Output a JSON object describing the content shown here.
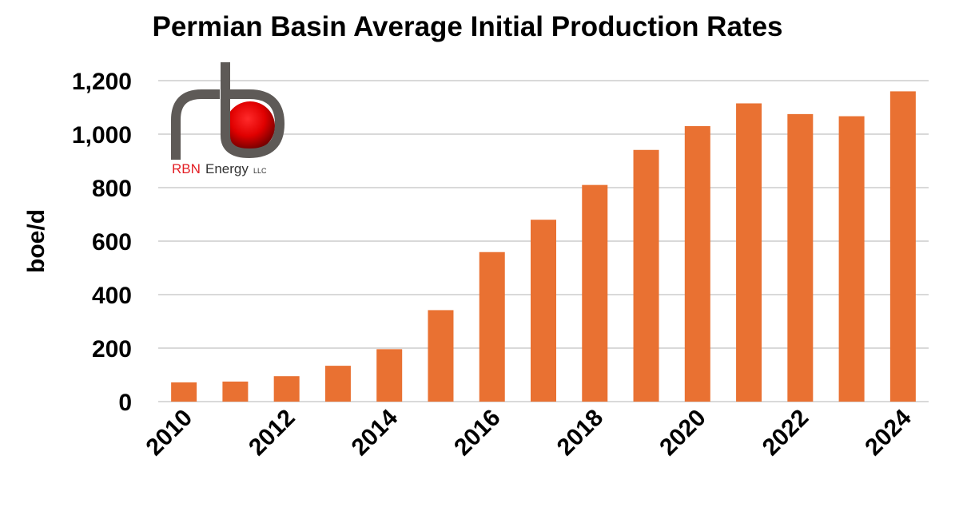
{
  "chart_data": {
    "type": "bar",
    "title": "Permian Basin Average Initial Production Rates",
    "xlabel": "",
    "ylabel": "boe/d",
    "ylim": [
      0,
      1200
    ],
    "yticks": [
      "0",
      "200",
      "400",
      "600",
      "800",
      "1,000",
      "1,200"
    ],
    "ytick_values": [
      0,
      200,
      400,
      600,
      800,
      1000,
      1200
    ],
    "categories": [
      "2010",
      "2011",
      "2012",
      "2013",
      "2014",
      "2015",
      "2016",
      "2017",
      "2018",
      "2019",
      "2020",
      "2021",
      "2022",
      "2023",
      "2024"
    ],
    "xtick_labels": [
      "2010",
      "2012",
      "2014",
      "2016",
      "2018",
      "2020",
      "2022",
      "2024"
    ],
    "values": [
      72,
      75,
      95,
      134,
      196,
      342,
      559,
      680,
      810,
      941,
      1030,
      1115,
      1075,
      1067,
      1160
    ],
    "grid": true,
    "bar_color": "#E97132",
    "grid_color": "#D9D9D9"
  },
  "logo": {
    "text": "RBN Energy LLC",
    "primary": "RBN",
    "secondary": "Energy",
    "suffix": "LLC",
    "accent": "#E31E24"
  }
}
